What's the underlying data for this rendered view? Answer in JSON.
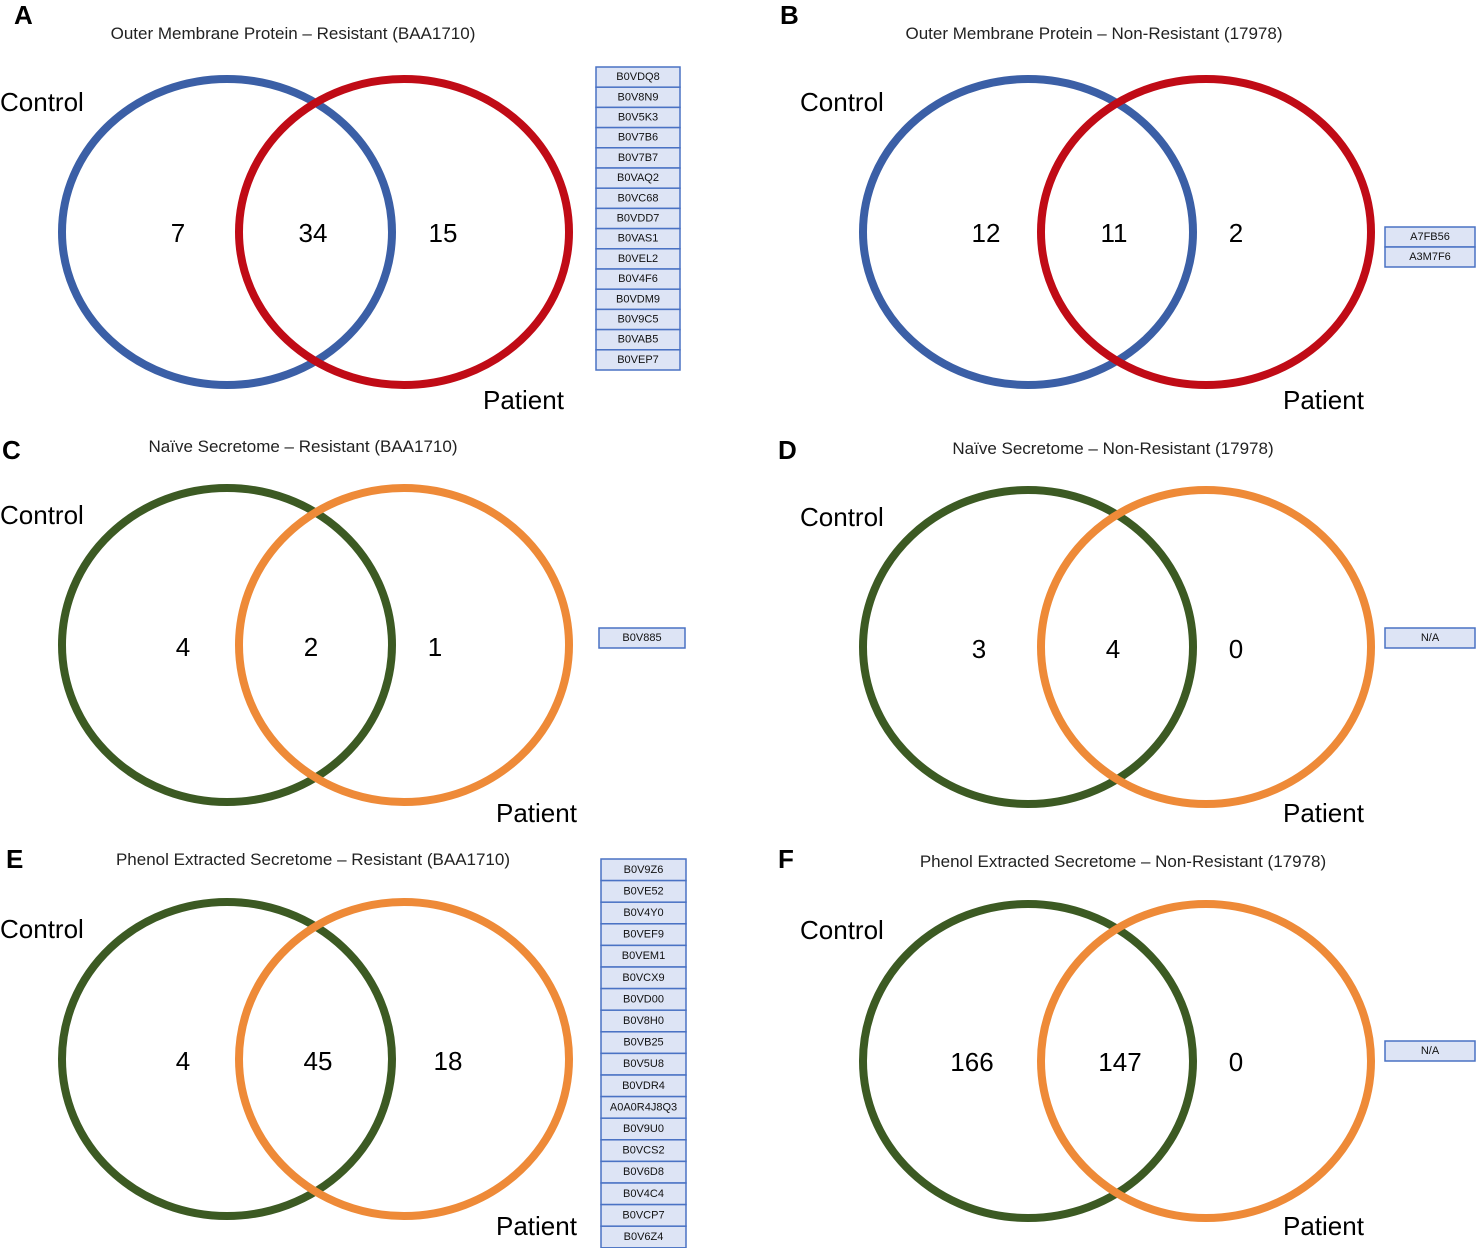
{
  "colors": {
    "blue": "#3b5fa6",
    "red": "#c00b16",
    "green": "#3c5a23",
    "orange": "#ee8a38",
    "list_fill": "#dde4f5",
    "list_border": "#4a72c4"
  },
  "panels": [
    {
      "letter": "A",
      "title": "Outer Membrane Protein – Resistant (BAA1710)",
      "control_label": "Control",
      "patient_label": "Patient",
      "control_color": "blue",
      "patient_color": "red",
      "counts": {
        "control_only": "7",
        "shared": "34",
        "patient_only": "15"
      },
      "patient_only_ids": [
        "B0VDQ8",
        "B0V8N9",
        "B0V5K3",
        "B0V7B6",
        "B0V7B7",
        "B0VAQ2",
        "B0VC68",
        "B0VDD7",
        "B0VAS1",
        "B0VEL2",
        "B0V4F6",
        "B0VDM9",
        "B0V9C5",
        "B0VAB5",
        "B0VEP7"
      ]
    },
    {
      "letter": "B",
      "title": "Outer Membrane Protein – Non-Resistant (17978)",
      "control_label": "Control",
      "patient_label": "Patient",
      "control_color": "blue",
      "patient_color": "red",
      "counts": {
        "control_only": "12",
        "shared": "11",
        "patient_only": "2"
      },
      "patient_only_ids": [
        "A7FB56",
        "A3M7F6"
      ]
    },
    {
      "letter": "C",
      "title": "Naïve Secretome – Resistant (BAA1710)",
      "control_label": "Control",
      "patient_label": "Patient",
      "control_color": "green",
      "patient_color": "orange",
      "counts": {
        "control_only": "4",
        "shared": "2",
        "patient_only": "1"
      },
      "patient_only_ids": [
        "B0V885"
      ]
    },
    {
      "letter": "D",
      "title": "Naïve Secretome – Non-Resistant (17978)",
      "control_label": "Control",
      "patient_label": "Patient",
      "control_color": "green",
      "patient_color": "orange",
      "counts": {
        "control_only": "3",
        "shared": "4",
        "patient_only": "0"
      },
      "patient_only_ids": [
        "N/A"
      ]
    },
    {
      "letter": "E",
      "title": "Phenol Extracted Secretome – Resistant (BAA1710)",
      "control_label": "Control",
      "patient_label": "Patient",
      "control_color": "green",
      "patient_color": "orange",
      "counts": {
        "control_only": "4",
        "shared": "45",
        "patient_only": "18"
      },
      "patient_only_ids": [
        "B0V9Z6",
        "B0VE52",
        "B0V4Y0",
        "B0VEF9",
        "B0VEM1",
        "B0VCX9",
        "B0VD00",
        "B0V8H0",
        "B0VB25",
        "B0V5U8",
        "B0VDR4",
        "A0A0R4J8Q3",
        "B0V9U0",
        "B0VCS2",
        "B0V6D8",
        "B0V4C4",
        "B0VCP7",
        "B0V6Z4"
      ]
    },
    {
      "letter": "F",
      "title": "Phenol Extracted Secretome – Non-Resistant (17978)",
      "control_label": "Control",
      "patient_label": "Patient",
      "control_color": "green",
      "patient_color": "orange",
      "counts": {
        "control_only": "166",
        "shared": "147",
        "patient_only": "0"
      },
      "patient_only_ids": [
        "N/A"
      ]
    }
  ]
}
